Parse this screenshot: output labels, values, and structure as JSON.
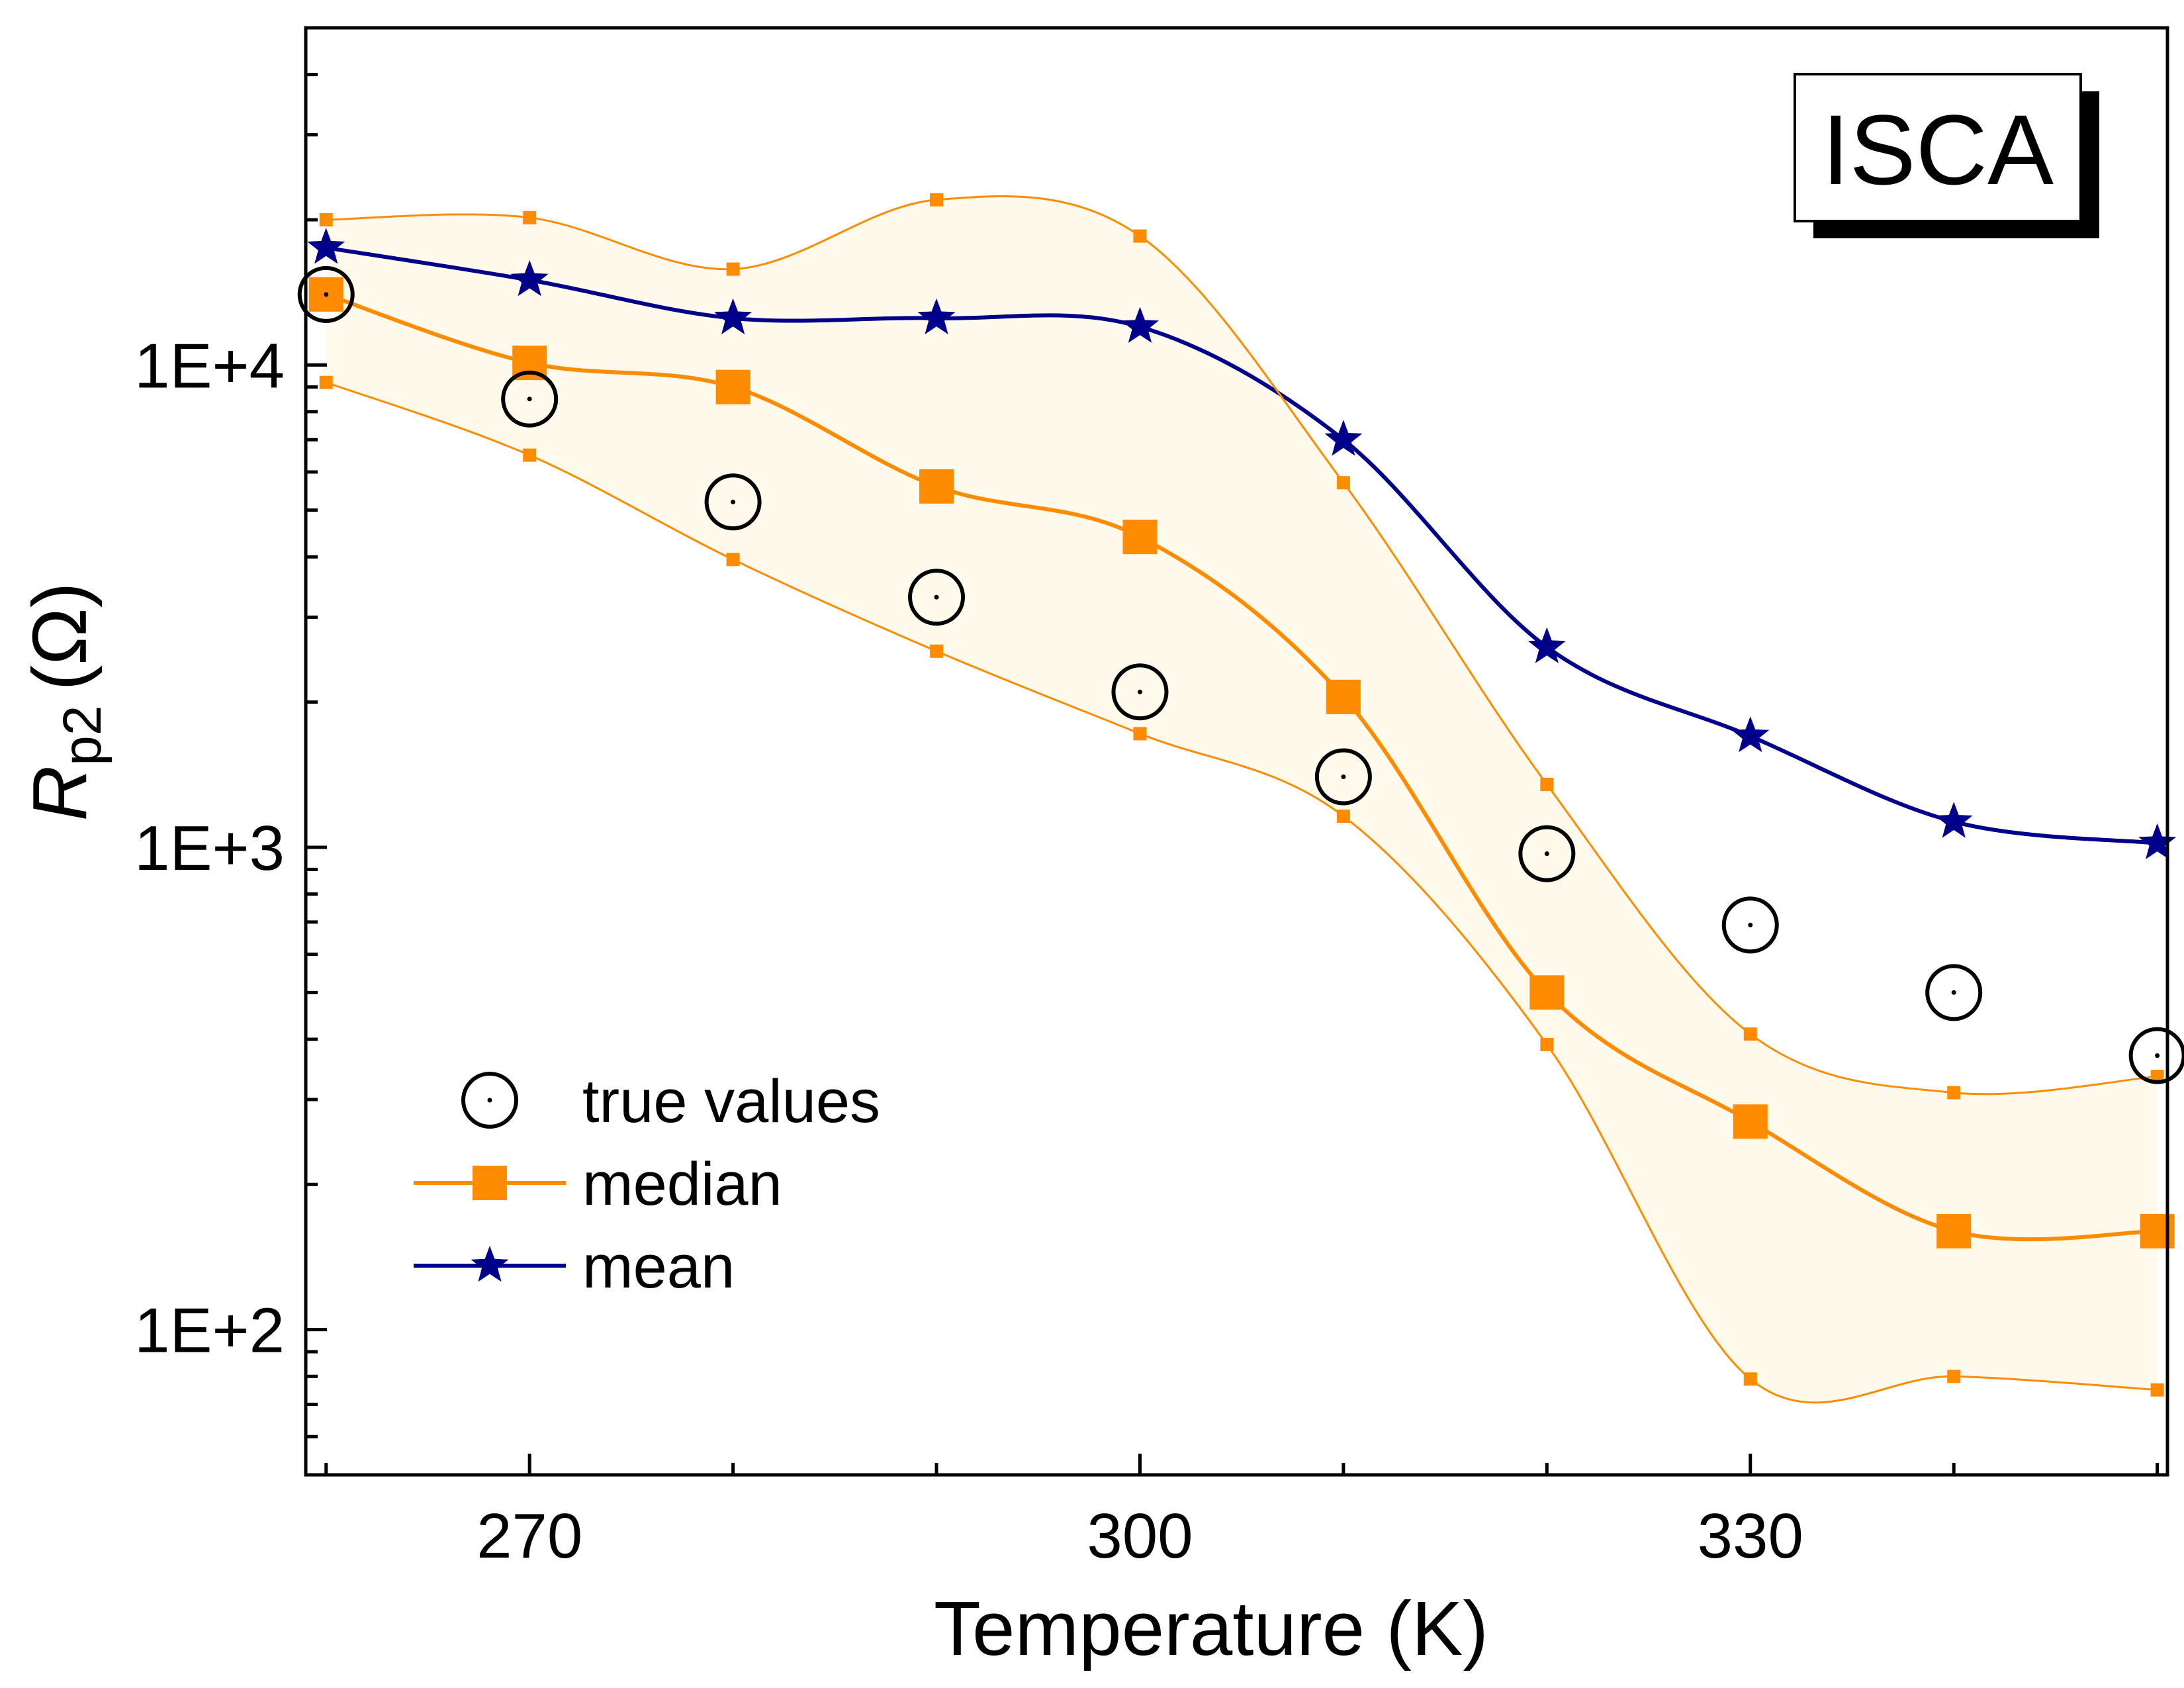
{
  "chart_data": {
    "type": "line",
    "title": "",
    "badge": "ISCA",
    "xlabel": "Temperature (K)",
    "ylabel": {
      "symbol": "R",
      "subscript": "p2",
      "unit": "(Ω)"
    },
    "xlim": [
      259,
      350.5
    ],
    "ylim": [
      50,
      50000
    ],
    "yscale": "log",
    "xticks": [
      270,
      300,
      330
    ],
    "xtick_labels": [
      "270",
      "300",
      "330"
    ],
    "yticks": [
      100,
      1000,
      10000
    ],
    "ytick_labels": [
      "1E+2",
      "1E+3",
      "1E+4"
    ],
    "grid": false,
    "legend_position": "lower-left",
    "x": [
      260,
      270,
      280,
      290,
      300,
      310,
      320,
      330,
      340,
      350
    ],
    "series": [
      {
        "name": "true values",
        "marker": "circle-dot",
        "color": "#000000",
        "values": [
          14000,
          8500,
          5200,
          3300,
          2100,
          1400,
          970,
          690,
          500,
          370
        ]
      },
      {
        "name": "median",
        "marker": "square",
        "color": "#FF8C00",
        "values": [
          14000,
          10100,
          9000,
          5600,
          4400,
          2050,
          500,
          270,
          160,
          160
        ]
      },
      {
        "name": "mean",
        "marker": "star",
        "color": "#00008B",
        "values": [
          17500,
          15000,
          12500,
          12500,
          12000,
          7000,
          2600,
          1700,
          1130,
          1020
        ]
      },
      {
        "name": "",
        "role": "band-upper",
        "marker": "small-square",
        "color": "#FF8C00",
        "values": [
          20000,
          20200,
          15800,
          22000,
          18500,
          5700,
          1350,
          410,
          310,
          335
        ]
      },
      {
        "name": "",
        "role": "band-lower",
        "marker": "small-square",
        "color": "#FF8C00",
        "values": [
          9200,
          6500,
          3950,
          2550,
          1720,
          1160,
          390,
          79,
          80,
          75
        ]
      }
    ],
    "band_fill": "#FFFAEB"
  }
}
